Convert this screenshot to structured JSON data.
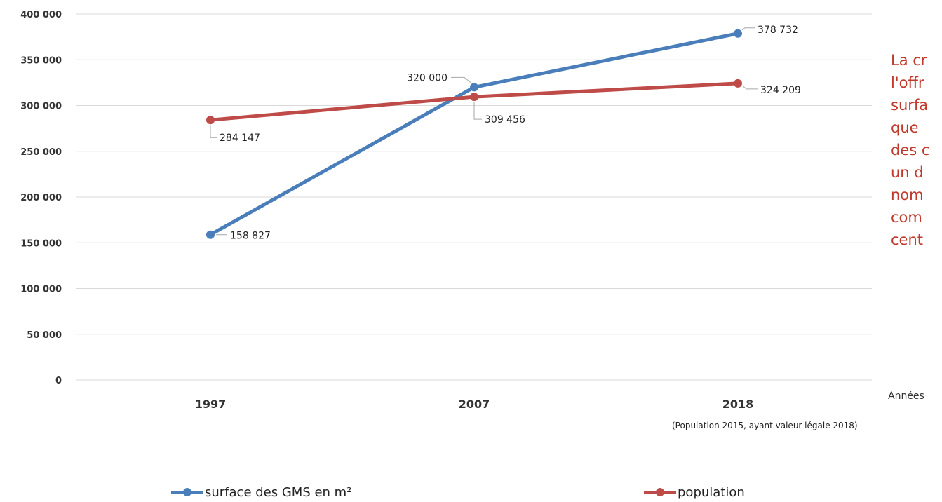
{
  "chart_data": {
    "type": "line",
    "title": "",
    "xlabel": "Années",
    "ylabel": "",
    "categories": [
      "1997",
      "2007",
      "2018"
    ],
    "category_note": "(Population 2015, ayant valeur légale 2018)",
    "ylim": [
      0,
      400000
    ],
    "yticks": [
      0,
      50000,
      100000,
      150000,
      200000,
      250000,
      300000,
      350000,
      400000
    ],
    "ytick_labels": [
      "0",
      "50 000",
      "100 000",
      "150 000",
      "200 000",
      "250 000",
      "300 000",
      "350 000",
      "400 000"
    ],
    "grid": true,
    "legend_position": "bottom",
    "series": [
      {
        "name": "surface des GMS en m²",
        "color": "#4a7ebb",
        "values": [
          158827,
          320000,
          378732
        ],
        "labels": [
          "158 827",
          "320 000",
          "378 732"
        ]
      },
      {
        "name": "population",
        "color": "#be4b48",
        "values": [
          284147,
          309456,
          324209
        ],
        "labels": [
          "284 147",
          "309 456",
          "324 209"
        ]
      }
    ]
  },
  "side_text": {
    "color": "#c0392b",
    "lines": [
      "La cr",
      "l'offr",
      "surfa",
      "que",
      "des c",
      "un d",
      "nom",
      "com",
      "cent"
    ]
  }
}
